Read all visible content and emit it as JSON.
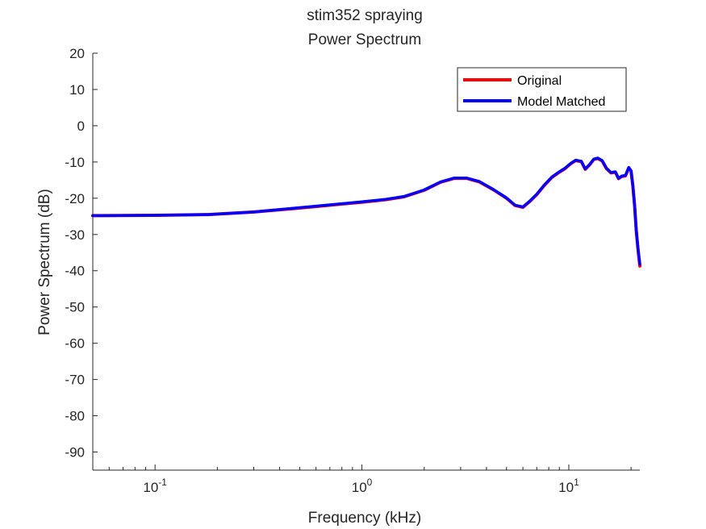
{
  "chart_data": {
    "type": "line",
    "title": [
      "stim352 spraying",
      "Power Spectrum"
    ],
    "xlabel": "Frequency (kHz)",
    "ylabel": "Power Spectrum (dB)",
    "xscale": "log",
    "xlim": [
      0.05,
      22.05
    ],
    "ylim": [
      -95,
      20
    ],
    "xticks": [
      {
        "value": 0.1,
        "base": "10",
        "exp": "-1"
      },
      {
        "value": 1,
        "base": "10",
        "exp": "0"
      },
      {
        "value": 10,
        "base": "10",
        "exp": "1"
      }
    ],
    "yticks": [
      20,
      10,
      0,
      -10,
      -20,
      -30,
      -40,
      -50,
      -60,
      -70,
      -80,
      -90
    ],
    "grid": false,
    "legend": "top-right",
    "series": [
      {
        "name": "Original",
        "color": "#ff0000",
        "x": [
          0.05,
          0.1,
          0.18,
          0.3,
          0.5,
          0.8,
          1.0,
          1.3,
          1.6,
          2.0,
          2.4,
          2.8,
          3.2,
          3.7,
          4.3,
          5.0,
          5.5,
          6.0,
          6.5,
          7.0,
          7.6,
          8.3,
          9.0,
          9.6,
          10.2,
          10.8,
          11.5,
          12.0,
          12.6,
          13.2,
          13.8,
          14.5,
          15.2,
          16.0,
          16.8,
          17.4,
          18.0,
          18.8,
          19.5,
          20.0,
          20.4,
          20.8,
          21.2,
          21.6,
          22.05
        ],
        "y": [
          -24.8,
          -24.7,
          -24.5,
          -23.8,
          -22.7,
          -21.6,
          -21.1,
          -20.4,
          -19.6,
          -17.8,
          -15.6,
          -14.5,
          -14.5,
          -15.5,
          -17.6,
          -20.0,
          -22.0,
          -22.5,
          -20.8,
          -19.0,
          -16.5,
          -14.2,
          -12.8,
          -11.8,
          -10.5,
          -9.6,
          -9.9,
          -12.0,
          -10.8,
          -9.3,
          -9.0,
          -9.7,
          -11.8,
          -13.0,
          -12.8,
          -14.6,
          -14.0,
          -13.8,
          -11.6,
          -12.5,
          -16.5,
          -22.0,
          -29.0,
          -34.0,
          -38.7
        ]
      },
      {
        "name": "Model Matched",
        "color": "#0000ff",
        "x": [
          0.05,
          0.1,
          0.18,
          0.3,
          0.5,
          0.8,
          1.0,
          1.3,
          1.6,
          2.0,
          2.4,
          2.8,
          3.2,
          3.7,
          4.3,
          5.0,
          5.5,
          6.0,
          6.5,
          7.0,
          7.6,
          8.3,
          9.0,
          9.6,
          10.2,
          10.8,
          11.5,
          12.0,
          12.6,
          13.2,
          13.8,
          14.5,
          15.2,
          16.0,
          16.8,
          17.4,
          18.0,
          18.8,
          19.5,
          20.0,
          20.4,
          20.8,
          21.2,
          21.6,
          22.05
        ],
        "y": [
          -24.8,
          -24.7,
          -24.5,
          -23.8,
          -22.6,
          -21.5,
          -21.0,
          -20.3,
          -19.5,
          -17.7,
          -15.5,
          -14.4,
          -14.4,
          -15.4,
          -17.5,
          -19.9,
          -21.9,
          -22.4,
          -20.7,
          -18.9,
          -16.4,
          -14.1,
          -12.7,
          -11.7,
          -10.4,
          -9.5,
          -9.8,
          -11.9,
          -10.7,
          -9.2,
          -8.9,
          -9.6,
          -11.7,
          -12.9,
          -12.7,
          -14.5,
          -13.9,
          -13.7,
          -11.5,
          -12.4,
          -16.4,
          -21.9,
          -28.9,
          -33.8,
          -38.2
        ]
      }
    ]
  }
}
